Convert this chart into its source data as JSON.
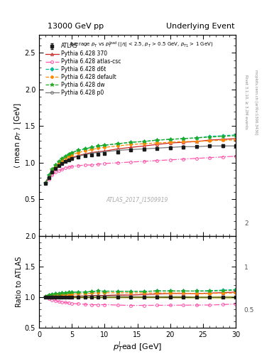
{
  "title_left": "13000 GeV pp",
  "title_right": "Underlying Event",
  "watermark": "ATLAS_2017_I1509919",
  "ylabel_main": "⟨ mean p_{T} ⟩ [GeV]",
  "ylabel_ratio": "Ratio to ATLAS",
  "xlabel": "p_{T}^{l}ead [GeV]",
  "xlim": [
    0,
    30
  ],
  "ylim_main": [
    0.0,
    2.75
  ],
  "ylim_ratio": [
    0.5,
    2.0
  ],
  "yticks_main": [
    0.5,
    1.0,
    1.5,
    2.0,
    2.5
  ],
  "yticks_ratio": [
    0.5,
    1.0,
    1.5,
    2.0
  ],
  "x_ATLAS": [
    1.0,
    1.5,
    2.0,
    2.5,
    3.0,
    3.5,
    4.0,
    4.5,
    5.0,
    6.0,
    7.0,
    8.0,
    9.0,
    10.0,
    12.0,
    14.0,
    16.0,
    18.0,
    20.0,
    22.0,
    24.0,
    26.0,
    28.0,
    30.0
  ],
  "y_ATLAS": [
    0.72,
    0.8,
    0.87,
    0.92,
    0.96,
    0.99,
    1.02,
    1.04,
    1.06,
    1.08,
    1.1,
    1.11,
    1.12,
    1.13,
    1.15,
    1.17,
    1.18,
    1.19,
    1.2,
    1.21,
    1.22,
    1.23,
    1.23,
    1.23
  ],
  "yerr_ATLAS": [
    0.01,
    0.01,
    0.01,
    0.01,
    0.01,
    0.01,
    0.01,
    0.01,
    0.01,
    0.01,
    0.01,
    0.01,
    0.01,
    0.01,
    0.01,
    0.01,
    0.01,
    0.01,
    0.015,
    0.015,
    0.015,
    0.015,
    0.02,
    0.02
  ],
  "x_370": [
    1.0,
    1.5,
    2.0,
    2.5,
    3.0,
    3.5,
    4.0,
    4.5,
    5.0,
    6.0,
    7.0,
    8.0,
    9.0,
    10.0,
    12.0,
    14.0,
    16.0,
    18.0,
    20.0,
    22.0,
    24.0,
    26.0,
    28.0,
    30.0
  ],
  "y_370": [
    0.72,
    0.81,
    0.88,
    0.93,
    0.97,
    1.0,
    1.03,
    1.05,
    1.07,
    1.1,
    1.12,
    1.14,
    1.15,
    1.16,
    1.19,
    1.21,
    1.23,
    1.25,
    1.27,
    1.28,
    1.29,
    1.31,
    1.32,
    1.33
  ],
  "x_atlas_csc": [
    1.0,
    1.5,
    2.0,
    2.5,
    3.0,
    3.5,
    4.0,
    4.5,
    5.0,
    6.0,
    7.0,
    8.0,
    9.0,
    10.0,
    12.0,
    14.0,
    16.0,
    18.0,
    20.0,
    22.0,
    24.0,
    26.0,
    28.0,
    30.0
  ],
  "y_atlas_csc": [
    0.72,
    0.78,
    0.83,
    0.87,
    0.89,
    0.91,
    0.93,
    0.94,
    0.95,
    0.96,
    0.97,
    0.97,
    0.98,
    0.99,
    1.0,
    1.01,
    1.02,
    1.03,
    1.04,
    1.05,
    1.06,
    1.07,
    1.08,
    1.09
  ],
  "x_d6t": [
    1.0,
    1.5,
    2.0,
    2.5,
    3.0,
    3.5,
    4.0,
    4.5,
    5.0,
    6.0,
    7.0,
    8.0,
    9.0,
    10.0,
    12.0,
    14.0,
    16.0,
    18.0,
    20.0,
    22.0,
    24.0,
    26.0,
    28.0,
    30.0
  ],
  "y_d6t": [
    0.73,
    0.83,
    0.91,
    0.97,
    1.02,
    1.06,
    1.09,
    1.12,
    1.14,
    1.17,
    1.19,
    1.21,
    1.23,
    1.24,
    1.26,
    1.28,
    1.29,
    1.31,
    1.32,
    1.33,
    1.34,
    1.36,
    1.37,
    1.38
  ],
  "x_default": [
    1.0,
    1.5,
    2.0,
    2.5,
    3.0,
    3.5,
    4.0,
    4.5,
    5.0,
    6.0,
    7.0,
    8.0,
    9.0,
    10.0,
    12.0,
    14.0,
    16.0,
    18.0,
    20.0,
    22.0,
    24.0,
    26.0,
    28.0,
    30.0
  ],
  "y_default": [
    0.73,
    0.82,
    0.9,
    0.96,
    1.0,
    1.04,
    1.07,
    1.09,
    1.11,
    1.14,
    1.16,
    1.18,
    1.2,
    1.21,
    1.23,
    1.25,
    1.26,
    1.27,
    1.28,
    1.29,
    1.29,
    1.3,
    1.31,
    1.31
  ],
  "x_dw": [
    1.0,
    1.5,
    2.0,
    2.5,
    3.0,
    3.5,
    4.0,
    4.5,
    5.0,
    6.0,
    7.0,
    8.0,
    9.0,
    10.0,
    12.0,
    14.0,
    16.0,
    18.0,
    20.0,
    22.0,
    24.0,
    26.0,
    28.0,
    30.0
  ],
  "y_dw": [
    0.73,
    0.83,
    0.91,
    0.97,
    1.02,
    1.06,
    1.09,
    1.12,
    1.14,
    1.17,
    1.19,
    1.21,
    1.23,
    1.24,
    1.26,
    1.28,
    1.29,
    1.31,
    1.32,
    1.33,
    1.34,
    1.35,
    1.36,
    1.37
  ],
  "x_p0": [
    1.0,
    1.5,
    2.0,
    2.5,
    3.0,
    3.5,
    4.0,
    4.5,
    5.0,
    6.0,
    7.0,
    8.0,
    9.0,
    10.0,
    12.0,
    14.0,
    16.0,
    18.0,
    20.0,
    22.0,
    24.0,
    26.0,
    28.0,
    30.0
  ],
  "y_p0": [
    0.72,
    0.8,
    0.87,
    0.92,
    0.96,
    0.99,
    1.02,
    1.04,
    1.06,
    1.09,
    1.11,
    1.13,
    1.14,
    1.15,
    1.17,
    1.18,
    1.19,
    1.2,
    1.21,
    1.22,
    1.22,
    1.23,
    1.23,
    1.23
  ],
  "color_ATLAS": "#1a1a1a",
  "color_370": "#cc2222",
  "color_atlas_csc": "#ff55aa",
  "color_d6t": "#00bb99",
  "color_default": "#ff8800",
  "color_dw": "#22aa22",
  "color_p0": "#777777"
}
